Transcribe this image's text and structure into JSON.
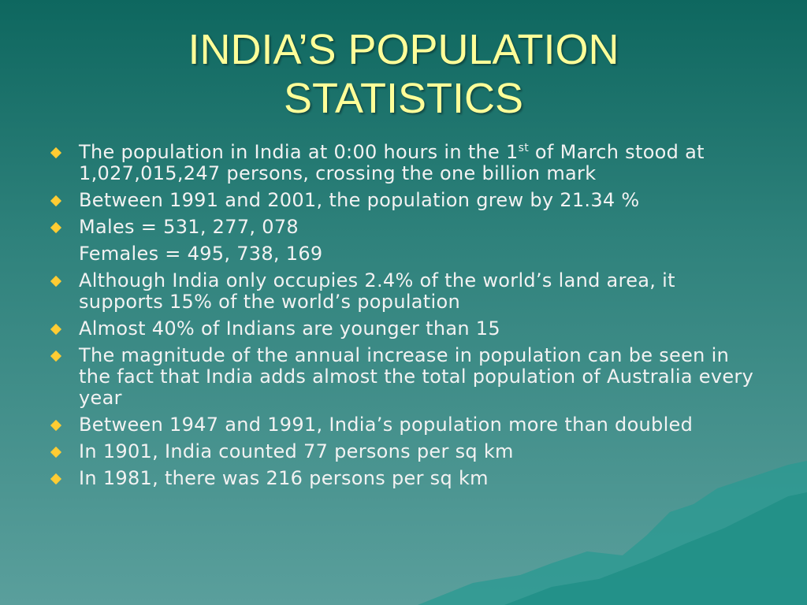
{
  "header": {
    "title_lines": [
      "INDIA’S POPULATION",
      "STATISTICS"
    ]
  },
  "bullets": [
    {
      "text": "The population in India at 0:00 hours in the 1",
      "sup": "st",
      "text_after": " of March stood at 1,027,015,247 persons, crossing the one billion mark"
    },
    {
      "text": "Between 1991 and 2001, the population grew by 21.34 %"
    },
    {
      "text": "Males = 531, 277, 078",
      "next_line": "Females = 495, 738, 169"
    },
    {
      "text": "Although India only occupies 2.4% of the world’s land area, it supports 15% of the world’s population"
    },
    {
      "text": "Almost 40% of Indians are younger than 15"
    },
    {
      "text": "The magnitude of the annual increase in population can be seen in the fact that India adds almost the total population of Australia every year"
    },
    {
      "text": "Between 1947 and 1991, India’s population more than doubled"
    },
    {
      "text": "In 1901, India counted 77 persons per sq km"
    },
    {
      "text": "In 1981, there was 216 persons per sq km"
    }
  ]
}
